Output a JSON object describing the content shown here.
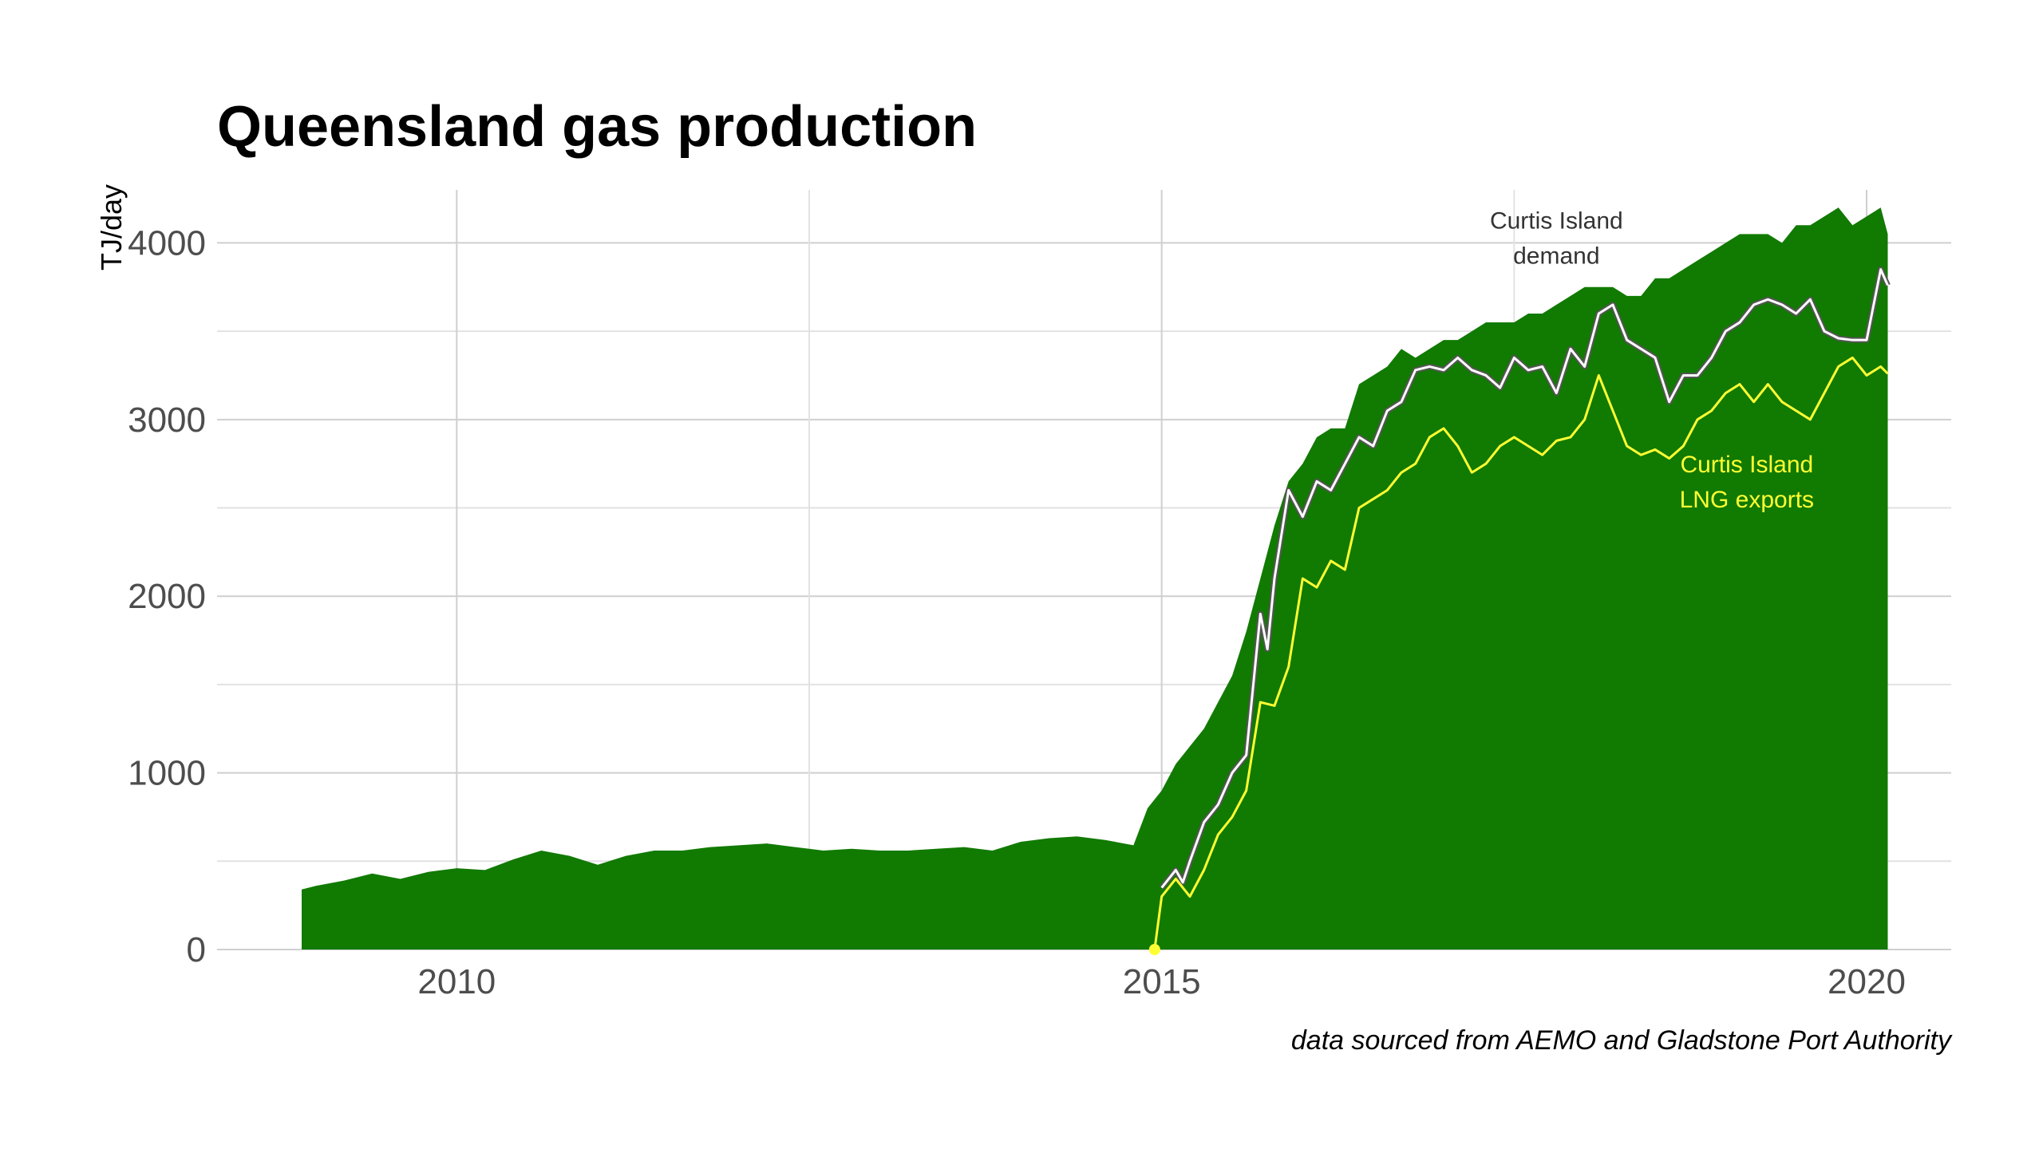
{
  "chart_data": {
    "type": "area",
    "title": "Queensland gas production",
    "xlabel": "",
    "ylabel": "TJ/day",
    "caption": "data sourced from AEMO and Gladstone Port Authority",
    "xlim": [
      2008.3,
      2020.6
    ],
    "ylim": [
      0,
      4300
    ],
    "x_ticks": [
      2010,
      2015,
      2020
    ],
    "y_ticks": [
      0,
      1000,
      2000,
      3000,
      4000
    ],
    "grid": true,
    "colors": {
      "production_fill": "#117a00",
      "demand_line": "#ffffff",
      "exports_line": "#ffff33"
    },
    "annotations": [
      {
        "text_lines": [
          "Curtis Island",
          "demand"
        ],
        "color": "#333333",
        "x": 2017.8,
        "y": 4080
      },
      {
        "text_lines": [
          "Curtis Island",
          "LNG exports"
        ],
        "color": "#ffff33",
        "x": 2019.15,
        "y": 2700
      }
    ],
    "series": [
      {
        "x": [
          2008.9,
          2009.0,
          2009.2,
          2009.4,
          2009.6,
          2009.8,
          2010.0,
          2010.2,
          2010.4,
          2010.6,
          2010.8,
          2011.0,
          2011.2,
          2011.4,
          2011.6,
          2011.8,
          2012.0,
          2012.2,
          2012.4,
          2012.6,
          2012.8,
          2013.0,
          2013.2,
          2013.4,
          2013.6,
          2013.8,
          2014.0,
          2014.2,
          2014.4,
          2014.6,
          2014.8,
          2014.9,
          2015.0,
          2015.1,
          2015.2,
          2015.3,
          2015.4,
          2015.5,
          2015.6,
          2015.7,
          2015.8,
          2015.9,
          2016.0,
          2016.1,
          2016.2,
          2016.3,
          2016.4,
          2016.5,
          2016.6,
          2016.7,
          2016.8,
          2016.9,
          2017.0,
          2017.1,
          2017.2,
          2017.3,
          2017.4,
          2017.5,
          2017.6,
          2017.7,
          2017.8,
          2017.9,
          2018.0,
          2018.1,
          2018.2,
          2018.3,
          2018.4,
          2018.5,
          2018.6,
          2018.7,
          2018.8,
          2018.9,
          2019.0,
          2019.1,
          2019.2,
          2019.3,
          2019.4,
          2019.5,
          2019.6,
          2019.7,
          2019.8,
          2019.9,
          2020.0,
          2020.1,
          2020.15
        ],
        "values": [
          340,
          360,
          390,
          430,
          400,
          440,
          460,
          450,
          510,
          560,
          530,
          480,
          530,
          560,
          560,
          580,
          590,
          600,
          580,
          560,
          570,
          560,
          560,
          570,
          580,
          560,
          610,
          630,
          640,
          620,
          590,
          800,
          900,
          1050,
          1150,
          1250,
          1400,
          1550,
          1800,
          2100,
          2400,
          2650,
          2750,
          2900,
          2950,
          2950,
          3200,
          3250,
          3300,
          3400,
          3350,
          3400,
          3450,
          3450,
          3500,
          3550,
          3550,
          3550,
          3600,
          3600,
          3650,
          3700,
          3750,
          3750,
          3750,
          3700,
          3700,
          3800,
          3800,
          3850,
          3900,
          3950,
          4000,
          4050,
          4050,
          4050,
          4000,
          4100,
          4100,
          4150,
          4200,
          4100,
          4150,
          4200,
          4050
        ]
      },
      {
        "x": [
          2015.0,
          2015.1,
          2015.15,
          2015.2,
          2015.3,
          2015.4,
          2015.5,
          2015.6,
          2015.7,
          2015.75,
          2015.8,
          2015.9,
          2016.0,
          2016.1,
          2016.2,
          2016.3,
          2016.4,
          2016.5,
          2016.6,
          2016.7,
          2016.8,
          2016.9,
          2017.0,
          2017.1,
          2017.2,
          2017.3,
          2017.4,
          2017.5,
          2017.6,
          2017.7,
          2017.8,
          2017.9,
          2018.0,
          2018.1,
          2018.2,
          2018.3,
          2018.4,
          2018.5,
          2018.6,
          2018.7,
          2018.8,
          2018.9,
          2019.0,
          2019.1,
          2019.2,
          2019.3,
          2019.4,
          2019.5,
          2019.6,
          2019.7,
          2019.8,
          2019.9,
          2020.0,
          2020.1,
          2020.15
        ],
        "values": [
          350,
          450,
          380,
          500,
          720,
          820,
          1000,
          1100,
          1900,
          1700,
          2100,
          2600,
          2450,
          2650,
          2600,
          2750,
          2900,
          2850,
          3050,
          3100,
          3280,
          3300,
          3280,
          3350,
          3280,
          3250,
          3180,
          3350,
          3280,
          3300,
          3150,
          3400,
          3300,
          3600,
          3650,
          3450,
          3400,
          3350,
          3100,
          3250,
          3250,
          3350,
          3500,
          3550,
          3650,
          3680,
          3650,
          3600,
          3680,
          3500,
          3460,
          3450,
          3450,
          3850,
          3760
        ]
      },
      {
        "x": [
          2014.95,
          2015.0,
          2015.1,
          2015.2,
          2015.3,
          2015.4,
          2015.5,
          2015.6,
          2015.7,
          2015.8,
          2015.9,
          2016.0,
          2016.1,
          2016.2,
          2016.3,
          2016.4,
          2016.5,
          2016.6,
          2016.7,
          2016.8,
          2016.9,
          2017.0,
          2017.1,
          2017.2,
          2017.3,
          2017.4,
          2017.5,
          2017.6,
          2017.7,
          2017.8,
          2017.9,
          2018.0,
          2018.1,
          2018.2,
          2018.3,
          2018.4,
          2018.5,
          2018.6,
          2018.7,
          2018.8,
          2018.9,
          2019.0,
          2019.1,
          2019.2,
          2019.3,
          2019.4,
          2019.5,
          2019.6,
          2019.7,
          2019.8,
          2019.9,
          2020.0,
          2020.1,
          2020.15
        ],
        "values": [
          0,
          300,
          400,
          300,
          450,
          650,
          750,
          900,
          1400,
          1380,
          1600,
          2100,
          2050,
          2200,
          2150,
          2500,
          2550,
          2600,
          2700,
          2750,
          2900,
          2950,
          2850,
          2700,
          2750,
          2850,
          2900,
          2850,
          2800,
          2880,
          2900,
          3000,
          3250,
          3050,
          2850,
          2800,
          2830,
          2780,
          2850,
          3000,
          3050,
          3150,
          3200,
          3100,
          3200,
          3100,
          3050,
          3000,
          3150,
          3300,
          3350,
          3250,
          3300,
          3260
        ]
      }
    ]
  }
}
